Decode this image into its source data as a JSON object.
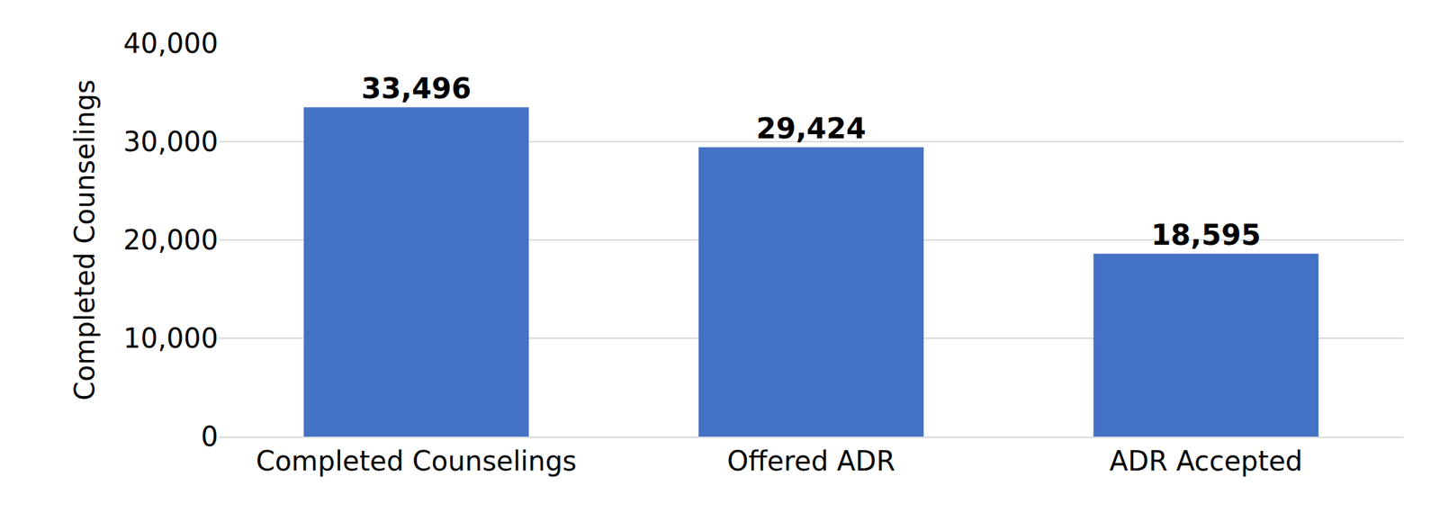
{
  "chart_data": {
    "type": "bar",
    "y_label": "Completed Counselings",
    "categories": [
      "Completed Counselings",
      "Offered ADR",
      "ADR Accepted"
    ],
    "values": [
      33496,
      29424,
      18595
    ],
    "value_labels": [
      "33,496",
      "29,424",
      "18,595"
    ],
    "data_labels": true,
    "color": "#4472c4",
    "ylim": [
      0,
      40000
    ],
    "yticks": [
      0,
      {
        "value": 10000,
        "label": "10,000"
      },
      {
        "value": 20000,
        "label": "20,000"
      },
      {
        "value": 30000,
        "label": "30,000"
      },
      {
        "value": 40000,
        "label": "40,000"
      }
    ],
    "grid": true
  }
}
